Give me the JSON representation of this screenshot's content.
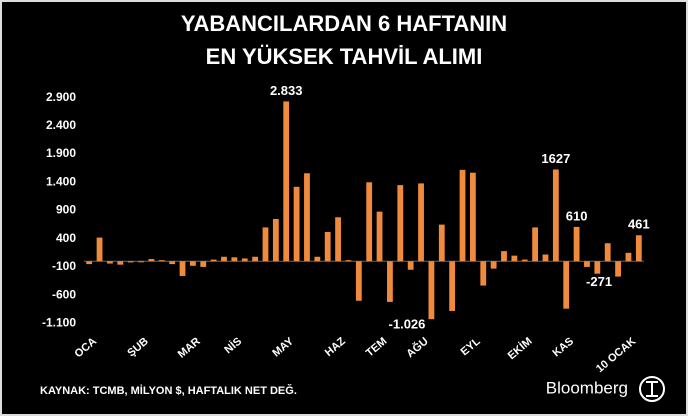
{
  "chart_data": {
    "type": "bar",
    "title": [
      "YABANCILARDAN 6 HAFTANIN",
      "EN YÜKSEK TAHVİL ALIMI"
    ],
    "source": "KAYNAK: TCMB, MİLYON $, HAFTALIK NET DEĞ.",
    "brand": "Bloomberg",
    "color": "#f08a3c",
    "categories": [
      "OCA",
      null,
      null,
      null,
      null,
      "ŞUB",
      null,
      null,
      null,
      null,
      "MAR",
      null,
      null,
      null,
      "NİS",
      null,
      null,
      null,
      null,
      "MAY",
      null,
      null,
      null,
      null,
      "HAZ",
      null,
      null,
      null,
      "TEM",
      null,
      null,
      null,
      "AĞU",
      null,
      null,
      null,
      null,
      "EYL",
      null,
      null,
      null,
      null,
      "EKİM",
      null,
      null,
      null,
      "KAS",
      null,
      null,
      null,
      null,
      null,
      "10 OCAK",
      null
    ],
    "values": [
      -50,
      420,
      -40,
      -60,
      -20,
      -10,
      40,
      20,
      -50,
      -260,
      -80,
      -100,
      30,
      80,
      70,
      50,
      80,
      600,
      750,
      2833,
      1320,
      1560,
      80,
      520,
      780,
      20,
      -700,
      1400,
      880,
      -720,
      1350,
      -150,
      1380,
      -1026,
      650,
      -880,
      1620,
      1570,
      -430,
      -130,
      180,
      100,
      30,
      600,
      120,
      1627,
      -840,
      610,
      -100,
      -220,
      320,
      -271,
      150,
      461
    ],
    "value_labels": [
      null,
      null,
      null,
      null,
      null,
      null,
      null,
      null,
      null,
      null,
      null,
      null,
      null,
      null,
      null,
      null,
      null,
      null,
      null,
      "2.833",
      null,
      null,
      null,
      null,
      null,
      null,
      null,
      null,
      null,
      null,
      null,
      null,
      null,
      "-1.026",
      null,
      null,
      null,
      null,
      null,
      null,
      null,
      null,
      null,
      null,
      null,
      "1627",
      null,
      "610",
      null,
      null,
      null,
      "-271",
      null,
      "461"
    ],
    "ylim": [
      -1200,
      3000
    ],
    "yticks": [
      {
        "value": 2900,
        "label": "2.900"
      },
      {
        "value": 2400,
        "label": "2.400"
      },
      {
        "value": 1900,
        "label": "1.900"
      },
      {
        "value": 1400,
        "label": "1.400"
      },
      900,
      400,
      -100,
      -600,
      {
        "value": -1100,
        "label": "-1.100"
      }
    ],
    "grid": false
  }
}
